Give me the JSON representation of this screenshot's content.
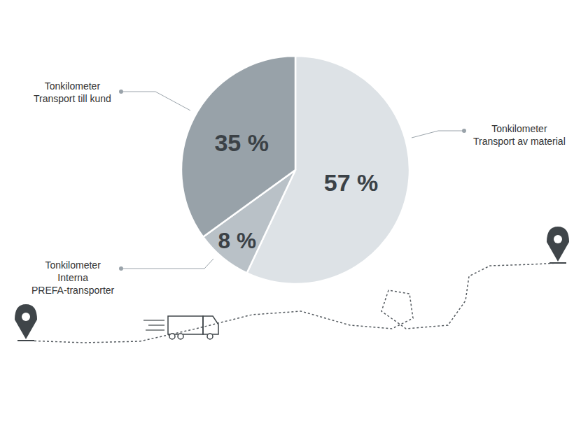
{
  "chart_data": {
    "type": "pie",
    "categories": [
      "Tonkilometer\nTransport av material",
      "Tonkilometer\nInterna\nPREFA-transporter",
      "Tonkilometer\nTransport till kund"
    ],
    "values": [
      57,
      8,
      35
    ],
    "value_labels": [
      "57 %",
      "8 %",
      "35 %"
    ],
    "colors": [
      "#dde2e6",
      "#b9c1c7",
      "#98a2a9"
    ],
    "data_labels": true
  }
}
